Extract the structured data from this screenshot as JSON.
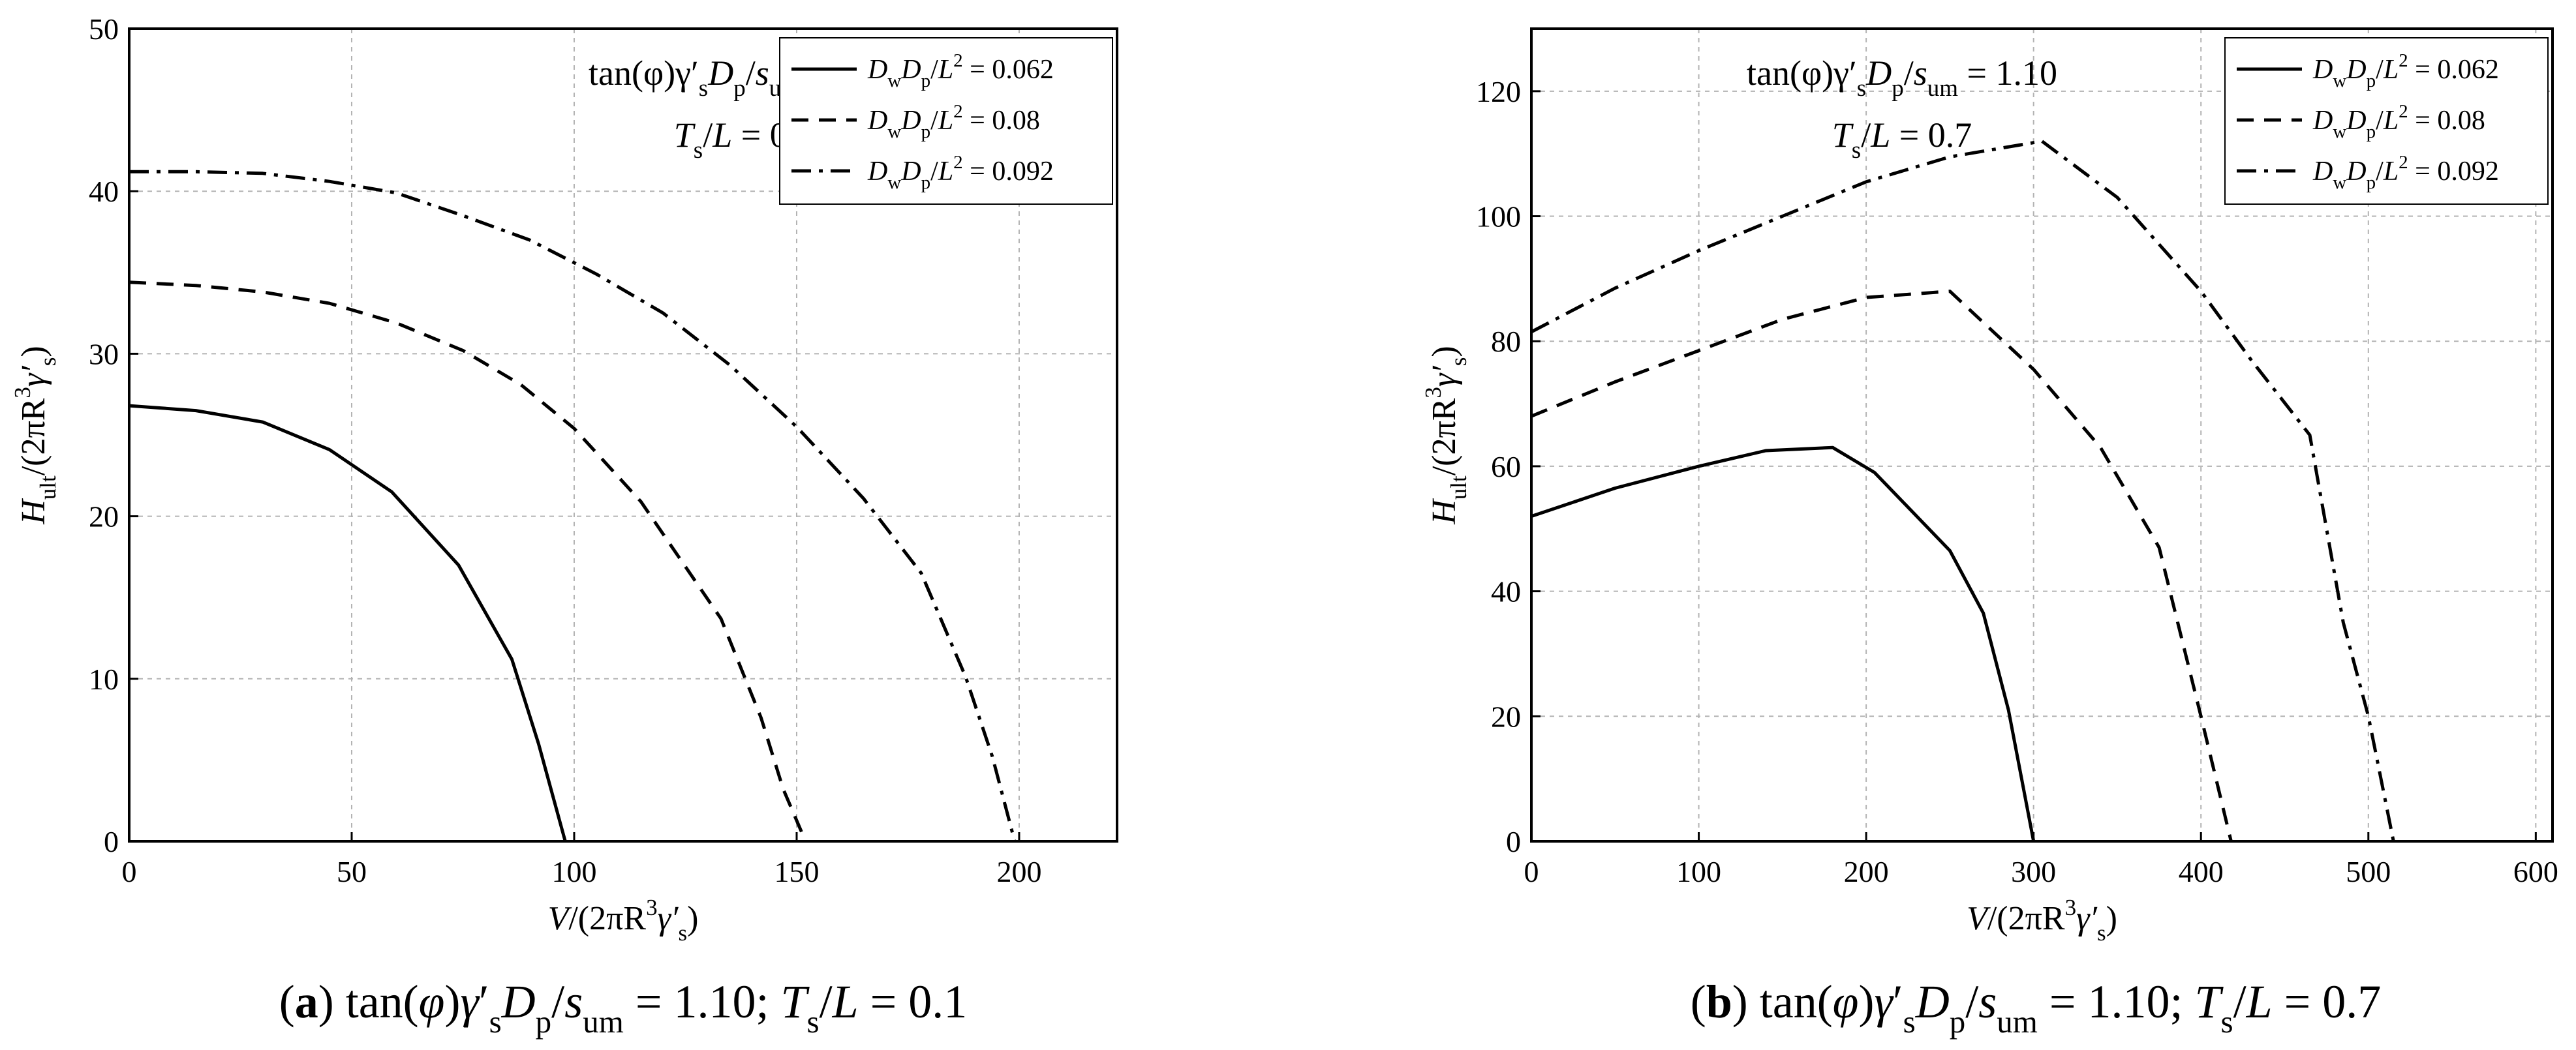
{
  "chart_data": [
    {
      "id": "a",
      "type": "line",
      "xlabel_parts": [
        {
          "t": "V",
          "s": "it"
        },
        {
          "t": "/(2πR"
        },
        {
          "t": "3",
          "s": "sup"
        },
        {
          "t": "γ′",
          "s": "it"
        },
        {
          "t": "s",
          "s": "sub"
        },
        {
          "t": ")"
        }
      ],
      "ylabel_parts": [
        {
          "t": "H",
          "s": "it"
        },
        {
          "t": "ult",
          "s": "sub"
        },
        {
          "t": "/(2πR"
        },
        {
          "t": "3",
          "s": "sup"
        },
        {
          "t": "γ′",
          "s": "it"
        },
        {
          "t": "s",
          "s": "sub"
        },
        {
          "t": ")"
        }
      ],
      "xlim": [
        0,
        222
      ],
      "ylim": [
        0,
        50
      ],
      "xticks": [
        0,
        50,
        100,
        150,
        200
      ],
      "yticks": [
        0,
        10,
        20,
        30,
        40,
        50
      ],
      "annotations": [
        {
          "parts": [
            {
              "t": "tan(φ)γ′"
            },
            {
              "t": "s",
              "s": "sub"
            },
            {
              "t": "D",
              "s": "it"
            },
            {
              "t": "p",
              "s": "sub"
            },
            {
              "t": "/"
            },
            {
              "t": "s",
              "s": "it"
            },
            {
              "t": "um",
              "s": "sub"
            },
            {
              "t": " = 1.10"
            }
          ]
        },
        {
          "parts": [
            {
              "t": "T",
              "s": "it"
            },
            {
              "t": "s",
              "s": "sub"
            },
            {
              "t": "/"
            },
            {
              "t": "L",
              "s": "it"
            },
            {
              "t": " = 0.1"
            }
          ]
        }
      ],
      "series": [
        {
          "name": "DwDp/L2 = 0.062",
          "dash": "solid",
          "legend_parts": [
            {
              "t": "D",
              "s": "it"
            },
            {
              "t": "w",
              "s": "sub"
            },
            {
              "t": "D",
              "s": "it"
            },
            {
              "t": "p",
              "s": "sub"
            },
            {
              "t": "/"
            },
            {
              "t": "L",
              "s": "it"
            },
            {
              "t": "2",
              "s": "sup"
            },
            {
              "t": " = 0.062"
            }
          ],
          "x": [
            0,
            15,
            30,
            45,
            59,
            74,
            86,
            92,
            98
          ],
          "y": [
            26.8,
            26.5,
            25.8,
            24.1,
            21.5,
            17.0,
            11.2,
            6.0,
            0
          ]
        },
        {
          "name": "DwDp/L2 = 0.08",
          "dash": "dashed",
          "legend_parts": [
            {
              "t": "D",
              "s": "it"
            },
            {
              "t": "w",
              "s": "sub"
            },
            {
              "t": "D",
              "s": "it"
            },
            {
              "t": "p",
              "s": "sub"
            },
            {
              "t": "/"
            },
            {
              "t": "L",
              "s": "it"
            },
            {
              "t": "2",
              "s": "sup"
            },
            {
              "t": " = 0.08"
            }
          ],
          "x": [
            0,
            15,
            30,
            45,
            60,
            75,
            88,
            100,
            115,
            133,
            142,
            147,
            152
          ],
          "y": [
            34.4,
            34.2,
            33.8,
            33.1,
            31.9,
            30.2,
            28.1,
            25.4,
            20.9,
            13.7,
            7.6,
            3.2,
            0
          ]
        },
        {
          "name": "DwDp/L2 = 0.092",
          "dash": "dashdot",
          "legend_parts": [
            {
              "t": "D",
              "s": "it"
            },
            {
              "t": "w",
              "s": "sub"
            },
            {
              "t": "D",
              "s": "it"
            },
            {
              "t": "p",
              "s": "sub"
            },
            {
              "t": "/"
            },
            {
              "t": "L",
              "s": "it"
            },
            {
              "t": "2",
              "s": "sup"
            },
            {
              "t": " = 0.092"
            }
          ],
          "x": [
            0,
            15,
            30,
            45,
            60,
            75,
            90,
            105,
            120,
            135,
            150,
            165,
            178,
            188,
            194,
            199
          ],
          "y": [
            41.2,
            41.2,
            41.1,
            40.6,
            39.9,
            38.5,
            37.0,
            34.9,
            32.5,
            29.3,
            25.5,
            21.1,
            16.5,
            10.1,
            5.2,
            0
          ]
        }
      ],
      "legend_position": "top-right"
    },
    {
      "id": "b",
      "type": "line",
      "xlabel_parts": [
        {
          "t": "V",
          "s": "it"
        },
        {
          "t": "/(2πR"
        },
        {
          "t": "3",
          "s": "sup"
        },
        {
          "t": "γ′",
          "s": "it"
        },
        {
          "t": "s",
          "s": "sub"
        },
        {
          "t": ")"
        }
      ],
      "ylabel_parts": [
        {
          "t": "H",
          "s": "it"
        },
        {
          "t": "ult",
          "s": "sub"
        },
        {
          "t": "/(2πR"
        },
        {
          "t": "3",
          "s": "sup"
        },
        {
          "t": "γ′",
          "s": "it"
        },
        {
          "t": "s",
          "s": "sub"
        },
        {
          "t": ")"
        }
      ],
      "xlim": [
        0,
        610
      ],
      "ylim": [
        0,
        130
      ],
      "xticks": [
        0,
        100,
        200,
        300,
        400,
        500,
        600
      ],
      "yticks": [
        0,
        20,
        40,
        60,
        80,
        100,
        120
      ],
      "annotations": [
        {
          "parts": [
            {
              "t": "tan(φ)γ′"
            },
            {
              "t": "s",
              "s": "sub"
            },
            {
              "t": "D",
              "s": "it"
            },
            {
              "t": "p",
              "s": "sub"
            },
            {
              "t": "/"
            },
            {
              "t": "s",
              "s": "it"
            },
            {
              "t": "um",
              "s": "sub"
            },
            {
              "t": " = 1.10"
            }
          ]
        },
        {
          "parts": [
            {
              "t": "T",
              "s": "it"
            },
            {
              "t": "s",
              "s": "sub"
            },
            {
              "t": "/"
            },
            {
              "t": "L",
              "s": "it"
            },
            {
              "t": " = 0.7"
            }
          ]
        }
      ],
      "series": [
        {
          "name": "DwDp/L2 = 0.062",
          "dash": "solid",
          "legend_parts": [
            {
              "t": "D",
              "s": "it"
            },
            {
              "t": "w",
              "s": "sub"
            },
            {
              "t": "D",
              "s": "it"
            },
            {
              "t": "p",
              "s": "sub"
            },
            {
              "t": "/"
            },
            {
              "t": "L",
              "s": "it"
            },
            {
              "t": "2",
              "s": "sup"
            },
            {
              "t": " = 0.062"
            }
          ],
          "x": [
            0,
            50,
            100,
            140,
            180,
            205,
            250,
            270,
            285,
            300
          ],
          "y": [
            52,
            56.5,
            60,
            62.5,
            63,
            59,
            46.5,
            36.5,
            21,
            0
          ]
        },
        {
          "name": "DwDp/L2 = 0.08",
          "dash": "dashed",
          "legend_parts": [
            {
              "t": "D",
              "s": "it"
            },
            {
              "t": "w",
              "s": "sub"
            },
            {
              "t": "D",
              "s": "it"
            },
            {
              "t": "p",
              "s": "sub"
            },
            {
              "t": "/"
            },
            {
              "t": "L",
              "s": "it"
            },
            {
              "t": "2",
              "s": "sup"
            },
            {
              "t": " = 0.08"
            }
          ],
          "x": [
            0,
            50,
            100,
            150,
            200,
            250,
            300,
            340,
            375,
            400,
            418
          ],
          "y": [
            68,
            73.5,
            78.5,
            83.5,
            87,
            88,
            75.5,
            63,
            47,
            20,
            0
          ]
        },
        {
          "name": "DwDp/L2 = 0.092",
          "dash": "dashdot",
          "legend_parts": [
            {
              "t": "D",
              "s": "it"
            },
            {
              "t": "w",
              "s": "sub"
            },
            {
              "t": "D",
              "s": "it"
            },
            {
              "t": "p",
              "s": "sub"
            },
            {
              "t": "/"
            },
            {
              "t": "L",
              "s": "it"
            },
            {
              "t": "2",
              "s": "sup"
            },
            {
              "t": " = 0.092"
            }
          ],
          "x": [
            0,
            50,
            100,
            150,
            200,
            250,
            305,
            350,
            400,
            430,
            465,
            485,
            500,
            515
          ],
          "y": [
            81.5,
            88.5,
            94.5,
            100,
            105.5,
            109.5,
            112,
            103,
            88,
            77,
            65,
            35,
            20,
            0
          ]
        }
      ],
      "legend_position": "top-right"
    }
  ],
  "captions": [
    {
      "parts": [
        {
          "t": "("
        },
        {
          "t": "a",
          "s": "b"
        },
        {
          "t": ") tan("
        },
        {
          "t": "φ",
          "s": "it"
        },
        {
          "t": ")"
        },
        {
          "t": "γ",
          "s": "it"
        },
        {
          "t": "′"
        },
        {
          "t": "s",
          "s": "sub"
        },
        {
          "t": "D",
          "s": "it"
        },
        {
          "t": "p",
          "s": "sub"
        },
        {
          "t": "/"
        },
        {
          "t": "s",
          "s": "it"
        },
        {
          "t": "um",
          "s": "sub"
        },
        {
          "t": " = 1.10; "
        },
        {
          "t": "T",
          "s": "it"
        },
        {
          "t": "s",
          "s": "sub"
        },
        {
          "t": "/"
        },
        {
          "t": "L",
          "s": "it"
        },
        {
          "t": " = 0.1"
        }
      ]
    },
    {
      "parts": [
        {
          "t": "("
        },
        {
          "t": "b",
          "s": "b"
        },
        {
          "t": ") tan("
        },
        {
          "t": "φ",
          "s": "it"
        },
        {
          "t": ")"
        },
        {
          "t": "γ",
          "s": "it"
        },
        {
          "t": "′"
        },
        {
          "t": "s",
          "s": "sub"
        },
        {
          "t": "D",
          "s": "it"
        },
        {
          "t": "p",
          "s": "sub"
        },
        {
          "t": "/"
        },
        {
          "t": "s",
          "s": "it"
        },
        {
          "t": "um",
          "s": "sub"
        },
        {
          "t": " = 1.10; "
        },
        {
          "t": "T",
          "s": "it"
        },
        {
          "t": "s",
          "s": "sub"
        },
        {
          "t": "/"
        },
        {
          "t": "L",
          "s": "it"
        },
        {
          "t": " = 0.7"
        }
      ]
    }
  ]
}
